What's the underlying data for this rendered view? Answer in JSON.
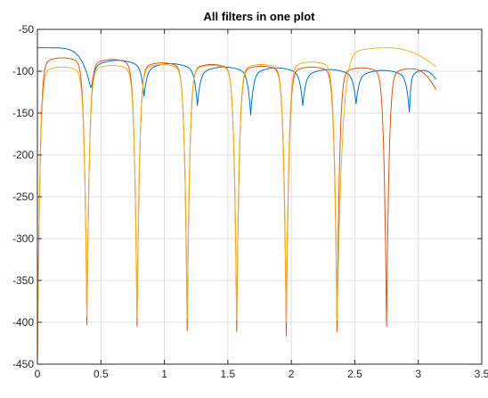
{
  "chart_data": {
    "type": "line",
    "title": "All filters in one plot",
    "xlabel": "",
    "ylabel": "",
    "xlim": [
      0,
      3.5
    ],
    "ylim": [
      -450,
      -50
    ],
    "xticks": [
      0,
      0.5,
      1,
      1.5,
      2,
      2.5,
      3,
      3.5
    ],
    "xtick_labels": [
      "0",
      "0.5",
      "1",
      "1.5",
      "2",
      "2.5",
      "3",
      "3.5"
    ],
    "yticks": [
      -450,
      -400,
      -350,
      -300,
      -250,
      -200,
      -150,
      -100,
      -50
    ],
    "ytick_labels": [
      "-450",
      "-400",
      "-350",
      "-300",
      "-250",
      "-200",
      "-150",
      "-100",
      "-50"
    ],
    "grid": true,
    "legend": "none",
    "series": [
      {
        "color": "#0072bd",
        "nulls": [
          0.42,
          0.84,
          1.26,
          1.68,
          2.09,
          2.51,
          2.93
        ],
        "null_depths": [
          -120,
          -122,
          -133,
          -144,
          -133,
          -131,
          -141
        ],
        "lobe_peaks": [
          -72,
          -87,
          -91,
          -95,
          -96,
          -98,
          -99,
          -99
        ],
        "x_end": 3.14,
        "y_end": -110
      },
      {
        "color": "#d95319",
        "nulls": [
          0.39,
          0.785,
          1.18,
          1.57,
          1.96,
          2.36,
          2.75
        ],
        "null_depths": [
          -395,
          -397,
          -402,
          -403,
          -408,
          -403,
          -397
        ],
        "lobe_peaks": [
          -84,
          -86,
          -90,
          -92,
          -94,
          -95,
          -96,
          -97
        ],
        "x_end": 3.14,
        "y_end": -122
      },
      {
        "color": "#edb120",
        "nulls": [
          0.39,
          0.785,
          1.18,
          1.57,
          1.96,
          2.36
        ],
        "null_depths": [
          -385,
          -387,
          -388,
          -390,
          -392,
          -390
        ],
        "lobe_peaks": [
          -95,
          -93,
          -92,
          -93,
          -92,
          -89,
          -72
        ],
        "x_end": 3.14,
        "y_end": -95
      }
    ]
  }
}
